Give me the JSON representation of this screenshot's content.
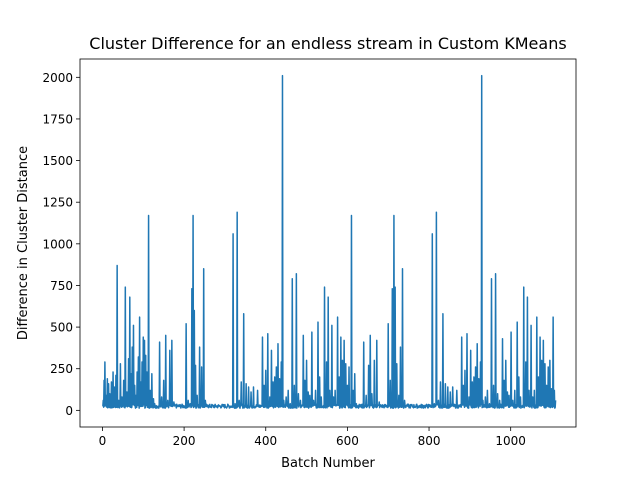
{
  "chart_data": {
    "type": "line",
    "title": "Cluster Difference for an endless stream in Custom KMeans",
    "xlabel": "Batch Number",
    "ylabel": "Difference in Cluster Distance",
    "xlim": [
      -55,
      1160
    ],
    "ylim": [
      -100,
      2110
    ],
    "xticks": [
      0,
      200,
      400,
      600,
      800,
      1000
    ],
    "yticks": [
      0,
      250,
      500,
      750,
      1000,
      1250,
      1500,
      1750,
      2000
    ],
    "grid": false,
    "series": [
      {
        "color": "#1f77b4",
        "n_points": 1111,
        "baseline": 25,
        "spikes": [
          [
            2,
            60
          ],
          [
            4,
            180
          ],
          [
            6,
            290
          ],
          [
            9,
            90
          ],
          [
            12,
            190
          ],
          [
            15,
            160
          ],
          [
            18,
            100
          ],
          [
            22,
            170
          ],
          [
            26,
            230
          ],
          [
            29,
            140
          ],
          [
            33,
            210
          ],
          [
            36,
            870
          ],
          [
            40,
            60
          ],
          [
            44,
            280
          ],
          [
            48,
            80
          ],
          [
            52,
            180
          ],
          [
            56,
            740
          ],
          [
            60,
            110
          ],
          [
            64,
            310
          ],
          [
            67,
            680
          ],
          [
            70,
            220
          ],
          [
            73,
            380
          ],
          [
            76,
            510
          ],
          [
            79,
            150
          ],
          [
            82,
            90
          ],
          [
            85,
            230
          ],
          [
            88,
            320
          ],
          [
            91,
            560
          ],
          [
            94,
            170
          ],
          [
            97,
            290
          ],
          [
            100,
            440
          ],
          [
            103,
            420
          ],
          [
            106,
            330
          ],
          [
            109,
            230
          ],
          [
            113,
            1170
          ],
          [
            117,
            120
          ],
          [
            121,
            220
          ],
          [
            125,
            70
          ],
          [
            128,
            40
          ],
          [
            140,
            410
          ],
          [
            145,
            80
          ],
          [
            150,
            180
          ],
          [
            155,
            450
          ],
          [
            160,
            60
          ],
          [
            165,
            360
          ],
          [
            170,
            420
          ],
          [
            175,
            50
          ],
          [
            180,
            30
          ],
          [
            205,
            520
          ],
          [
            210,
            60
          ],
          [
            215,
            40
          ],
          [
            219,
            730
          ],
          [
            222,
            1170
          ],
          [
            225,
            600
          ],
          [
            228,
            270
          ],
          [
            232,
            90
          ],
          [
            238,
            380
          ],
          [
            243,
            260
          ],
          [
            248,
            850
          ],
          [
            252,
            60
          ],
          [
            258,
            30
          ],
          [
            320,
            1060
          ],
          [
            325,
            40
          ],
          [
            330,
            1190
          ],
          [
            335,
            60
          ],
          [
            340,
            170
          ],
          [
            346,
            580
          ],
          [
            352,
            160
          ],
          [
            358,
            140
          ],
          [
            364,
            110
          ],
          [
            370,
            140
          ],
          [
            380,
            120
          ],
          [
            392,
            440
          ],
          [
            396,
            150
          ],
          [
            400,
            240
          ],
          [
            405,
            460
          ],
          [
            410,
            80
          ],
          [
            414,
            360
          ],
          [
            418,
            170
          ],
          [
            422,
            200
          ],
          [
            426,
            260
          ],
          [
            430,
            400
          ],
          [
            434,
            190
          ],
          [
            438,
            290
          ],
          [
            441,
            2010
          ],
          [
            444,
            60
          ],
          [
            450,
            80
          ],
          [
            455,
            120
          ],
          [
            460,
            40
          ],
          [
            465,
            790
          ],
          [
            470,
            150
          ],
          [
            475,
            820
          ],
          [
            480,
            100
          ],
          [
            485,
            60
          ],
          [
            492,
            450
          ],
          [
            496,
            180
          ],
          [
            500,
            300
          ],
          [
            504,
            110
          ],
          [
            508,
            90
          ],
          [
            513,
            470
          ],
          [
            517,
            60
          ],
          [
            522,
            120
          ],
          [
            528,
            530
          ],
          [
            532,
            200
          ],
          [
            536,
            80
          ],
          [
            544,
            740
          ],
          [
            549,
            290
          ],
          [
            553,
            680
          ],
          [
            557,
            120
          ],
          [
            562,
            510
          ],
          [
            566,
            80
          ],
          [
            570,
            120
          ],
          [
            576,
            560
          ],
          [
            580,
            200
          ],
          [
            584,
            440
          ],
          [
            588,
            300
          ],
          [
            592,
            420
          ],
          [
            596,
            280
          ],
          [
            600,
            150
          ],
          [
            604,
            260
          ],
          [
            610,
            1170
          ],
          [
            614,
            120
          ],
          [
            618,
            220
          ],
          [
            622,
            40
          ],
          [
            640,
            410
          ],
          [
            646,
            90
          ],
          [
            652,
            270
          ],
          [
            656,
            450
          ],
          [
            660,
            100
          ],
          [
            666,
            300
          ],
          [
            672,
            420
          ],
          [
            678,
            50
          ],
          [
            700,
            520
          ],
          [
            705,
            180
          ],
          [
            710,
            730
          ],
          [
            714,
            1170
          ],
          [
            717,
            740
          ],
          [
            721,
            280
          ],
          [
            726,
            90
          ],
          [
            730,
            380
          ],
          [
            735,
            850
          ],
          [
            740,
            60
          ],
          [
            746,
            30
          ],
          [
            808,
            1060
          ],
          [
            813,
            40
          ],
          [
            818,
            1190
          ],
          [
            823,
            60
          ],
          [
            828,
            170
          ],
          [
            834,
            580
          ],
          [
            840,
            160
          ],
          [
            846,
            140
          ],
          [
            852,
            110
          ],
          [
            858,
            140
          ],
          [
            868,
            120
          ],
          [
            880,
            440
          ],
          [
            884,
            150
          ],
          [
            888,
            240
          ],
          [
            893,
            460
          ],
          [
            898,
            80
          ],
          [
            902,
            360
          ],
          [
            906,
            170
          ],
          [
            910,
            200
          ],
          [
            914,
            260
          ],
          [
            918,
            400
          ],
          [
            922,
            190
          ],
          [
            926,
            290
          ],
          [
            929,
            2010
          ],
          [
            932,
            60
          ],
          [
            938,
            80
          ],
          [
            943,
            120
          ],
          [
            948,
            40
          ],
          [
            953,
            790
          ],
          [
            958,
            150
          ],
          [
            963,
            820
          ],
          [
            968,
            100
          ],
          [
            973,
            60
          ],
          [
            980,
            430
          ],
          [
            984,
            180
          ],
          [
            988,
            300
          ],
          [
            992,
            110
          ],
          [
            996,
            90
          ],
          [
            1001,
            470
          ],
          [
            1005,
            60
          ],
          [
            1010,
            120
          ],
          [
            1016,
            530
          ],
          [
            1020,
            200
          ],
          [
            1024,
            80
          ],
          [
            1032,
            740
          ],
          [
            1037,
            290
          ],
          [
            1041,
            680
          ],
          [
            1045,
            120
          ],
          [
            1050,
            510
          ],
          [
            1054,
            80
          ],
          [
            1058,
            120
          ],
          [
            1064,
            560
          ],
          [
            1068,
            200
          ],
          [
            1072,
            440
          ],
          [
            1076,
            300
          ],
          [
            1080,
            420
          ],
          [
            1084,
            280
          ],
          [
            1088,
            150
          ],
          [
            1092,
            260
          ],
          [
            1096,
            300
          ],
          [
            1100,
            130
          ],
          [
            1104,
            560
          ],
          [
            1107,
            120
          ],
          [
            1110,
            60
          ]
        ]
      }
    ]
  }
}
